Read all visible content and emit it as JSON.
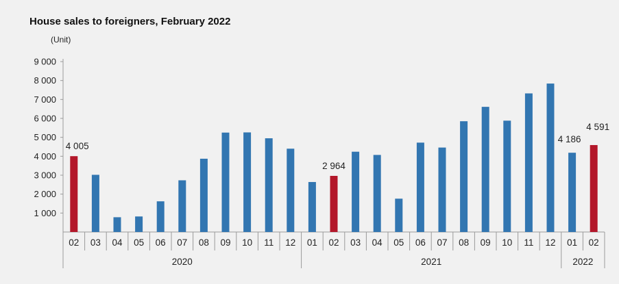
{
  "chart_data": {
    "type": "bar",
    "title": "House sales to foreigners, February 2022",
    "unit_label": "(Unit)",
    "categories": [
      "02",
      "03",
      "04",
      "05",
      "06",
      "07",
      "08",
      "09",
      "10",
      "11",
      "12",
      "01",
      "02",
      "03",
      "04",
      "05",
      "06",
      "07",
      "08",
      "09",
      "10",
      "11",
      "12",
      "01",
      "02"
    ],
    "values": [
      4005,
      3020,
      780,
      820,
      1620,
      2730,
      3870,
      5250,
      5260,
      4950,
      4400,
      2640,
      2964,
      4240,
      4070,
      1760,
      4720,
      4460,
      5850,
      6610,
      5880,
      7320,
      7840,
      4186,
      4591
    ],
    "highlight_color": "#b3172a",
    "base_color": "#3276b1",
    "highlighted": [
      0,
      12,
      24
    ],
    "data_labels": [
      {
        "index": 0,
        "text": "4 005"
      },
      {
        "index": 12,
        "text": "2 964"
      },
      {
        "index": 23,
        "text": "4 186"
      },
      {
        "index": 24,
        "text": "4 591"
      }
    ],
    "year_groups": [
      {
        "label": "2020",
        "start": 0,
        "end": 10
      },
      {
        "label": "2021",
        "start": 11,
        "end": 22
      },
      {
        "label": "2022",
        "start": 23,
        "end": 24
      }
    ],
    "ylim": [
      0,
      9000
    ],
    "y_ticks": [
      {
        "value": 1000,
        "label": "1 000"
      },
      {
        "value": 2000,
        "label": "2 000"
      },
      {
        "value": 3000,
        "label": "3 000"
      },
      {
        "value": 4000,
        "label": "4 000"
      },
      {
        "value": 5000,
        "label": "5 000"
      },
      {
        "value": 6000,
        "label": "6 000"
      },
      {
        "value": 7000,
        "label": "7 000"
      },
      {
        "value": 8000,
        "label": "8 000"
      },
      {
        "value": 9000,
        "label": "9 000"
      }
    ],
    "grid": false,
    "legend": false
  }
}
